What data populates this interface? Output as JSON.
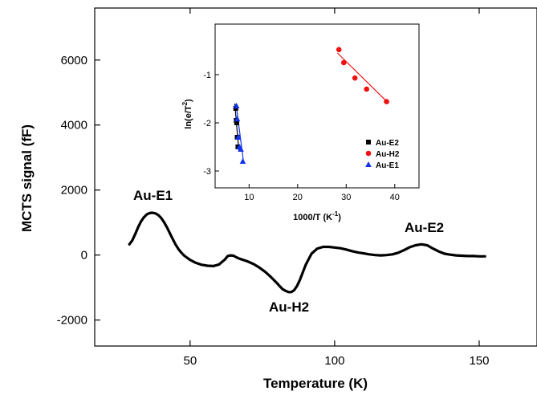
{
  "chart_data": [
    {
      "type": "line",
      "xlabel": "Temperature (K)",
      "ylabel": "MCTS signal (fF)",
      "xlim": [
        17,
        170
      ],
      "ylim": [
        -2800,
        7600
      ],
      "xticks": [
        50,
        100,
        150
      ],
      "yticks": [
        -2000,
        0,
        2000,
        4000,
        6000
      ],
      "xtick_labels": [
        "50",
        "100",
        "150"
      ],
      "ytick_labels": [
        "-2000",
        "0",
        "2000",
        "4000",
        "6000"
      ],
      "grid": false,
      "series": [
        {
          "x": [
            29,
            30,
            31,
            32,
            33,
            34,
            35,
            36,
            37,
            38,
            39,
            40,
            41,
            42,
            43,
            44,
            45,
            46,
            47,
            48,
            50,
            52,
            54,
            56,
            58,
            60,
            62,
            63,
            64,
            65,
            66,
            67,
            68,
            69,
            70,
            72,
            74,
            76,
            78,
            80,
            81,
            82,
            83,
            84,
            85,
            86,
            87,
            88,
            89,
            90,
            92,
            94,
            96,
            98,
            100,
            102,
            104,
            106,
            108,
            110,
            112,
            114,
            116,
            118,
            120,
            122,
            124,
            126,
            128,
            130,
            132,
            134,
            136,
            138,
            140,
            142,
            144,
            146,
            148,
            150,
            152
          ],
          "values": [
            330,
            450,
            640,
            850,
            1030,
            1160,
            1250,
            1290,
            1300,
            1280,
            1230,
            1140,
            1010,
            850,
            670,
            490,
            320,
            180,
            70,
            -20,
            -150,
            -240,
            -300,
            -330,
            -340,
            -290,
            -140,
            -30,
            -10,
            -20,
            -70,
            -110,
            -140,
            -170,
            -200,
            -280,
            -390,
            -520,
            -680,
            -860,
            -960,
            -1050,
            -1100,
            -1140,
            -1140,
            -1080,
            -950,
            -760,
            -530,
            -300,
            40,
            200,
            250,
            250,
            230,
            210,
            170,
            120,
            80,
            50,
            20,
            0,
            -10,
            0,
            20,
            70,
            150,
            240,
            300,
            330,
            300,
            200,
            110,
            40,
            10,
            -10,
            -20,
            -30,
            -30,
            -40,
            -40
          ]
        }
      ],
      "annotations": [
        "Au-E1",
        "Au-H2",
        "Au-E2"
      ]
    },
    {
      "type": "scatter",
      "xlabel": "1000/T (K",
      "xlabel_sup": "-1",
      "xlabel_end": ")",
      "ylabel": "ln(e/T",
      "ylabel_sup": "2",
      "ylabel_end": ")",
      "xlim": [
        3,
        45
      ],
      "ylim": [
        -3.35,
        0.05
      ],
      "xticks": [
        10,
        20,
        30,
        40
      ],
      "yticks": [
        -3,
        -2,
        -1
      ],
      "xtick_labels": [
        "10",
        "20",
        "30",
        "40"
      ],
      "ytick_labels": [
        "-3",
        "-2",
        "-1"
      ],
      "series": [
        {
          "name": "Au-E2",
          "color": "#000000",
          "marker": "square",
          "x": [
            7.25,
            7.35,
            7.45,
            7.55,
            7.7
          ],
          "y": [
            -1.7,
            -1.95,
            -2.0,
            -2.3,
            -2.5
          ],
          "fit": [
            [
              7.05,
              -1.6
            ],
            [
              7.9,
              -2.6
            ]
          ]
        },
        {
          "name": "Au-H2",
          "color": "#ee1111",
          "marker": "circle",
          "x": [
            28.5,
            29.5,
            31.8,
            34.2,
            38.3
          ],
          "y": [
            -0.48,
            -0.75,
            -1.07,
            -1.3,
            -1.56
          ],
          "fit": [
            [
              28.2,
              -0.55
            ],
            [
              38.8,
              -1.6
            ]
          ]
        },
        {
          "name": "Au-E1",
          "color": "#1133ee",
          "marker": "triangle",
          "x": [
            7.4,
            7.55,
            7.75,
            8.0,
            8.3,
            8.7
          ],
          "y": [
            -1.65,
            -1.92,
            -2.3,
            -2.5,
            -2.55,
            -2.8
          ],
          "fit": [
            [
              7.3,
              -1.6
            ],
            [
              8.9,
              -2.85
            ]
          ]
        }
      ]
    }
  ]
}
